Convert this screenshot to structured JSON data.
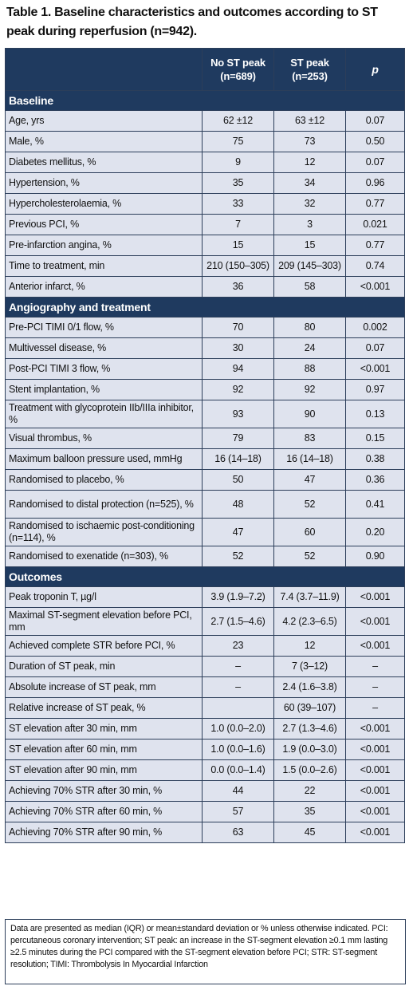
{
  "title": "Table 1. Baseline characteristics and outcomes according to ST peak during reperfusion (n=942).",
  "table": {
    "columns": {
      "label": "",
      "no_st_peak": "No ST peak (n=689)",
      "st_peak": "ST peak (n=253)",
      "p": "p"
    },
    "sections": [
      {
        "heading": "Baseline",
        "rows": [
          {
            "label": "Age, yrs",
            "no": "62 ±12",
            "yes": "63 ±12",
            "p": "0.07"
          },
          {
            "label": "Male, %",
            "no": "75",
            "yes": "73",
            "p": "0.50"
          },
          {
            "label": "Diabetes mellitus, %",
            "no": "9",
            "yes": "12",
            "p": "0.07"
          },
          {
            "label": "Hypertension, %",
            "no": "35",
            "yes": "34",
            "p": "0.96"
          },
          {
            "label": "Hypercholesterolaemia, %",
            "no": "33",
            "yes": "32",
            "p": "0.77"
          },
          {
            "label": "Previous PCI, %",
            "no": "7",
            "yes": "3",
            "p": "0.021"
          },
          {
            "label": "Pre-infarction angina, %",
            "no": "15",
            "yes": "15",
            "p": "0.77"
          },
          {
            "label": "Time to treatment, min",
            "no": "210 (150–305)",
            "yes": "209 (145–303)",
            "p": "0.74"
          },
          {
            "label": "Anterior infarct, %",
            "no": "36",
            "yes": "58",
            "p": "<0.001"
          }
        ]
      },
      {
        "heading": "Angiography and treatment",
        "rows": [
          {
            "label": "Pre-PCI TIMI 0/1 flow, %",
            "no": "70",
            "yes": "80",
            "p": "0.002"
          },
          {
            "label": "Multivessel disease, %",
            "no": "30",
            "yes": "24",
            "p": "0.07"
          },
          {
            "label": "Post-PCI TIMI 3 flow, %",
            "no": "94",
            "yes": "88",
            "p": "<0.001"
          },
          {
            "label": "Stent implantation, %",
            "no": "92",
            "yes": "92",
            "p": "0.97"
          },
          {
            "label": "Treatment with glycoprotein IIb/IIIa inhibitor, %",
            "no": "93",
            "yes": "90",
            "p": "0.13",
            "tall": true
          },
          {
            "label": "Visual thrombus, %",
            "no": "79",
            "yes": "83",
            "p": "0.15"
          },
          {
            "label": "Maximum balloon pressure used, mmHg",
            "no": "16 (14–18)",
            "yes": "16 (14–18)",
            "p": "0.38"
          },
          {
            "label": "Randomised to placebo, %",
            "no": "50",
            "yes": "47",
            "p": "0.36"
          },
          {
            "label": "Randomised to distal protection (n=525), %",
            "no": "48",
            "yes": "52",
            "p": "0.41",
            "tall": true
          },
          {
            "label": "Randomised to ischaemic post-conditioning (n=114), %",
            "no": "47",
            "yes": "60",
            "p": "0.20",
            "tall": true
          },
          {
            "label": "Randomised to exenatide (n=303), %",
            "no": "52",
            "yes": "52",
            "p": "0.90"
          }
        ]
      },
      {
        "heading": "Outcomes",
        "rows": [
          {
            "label": "Peak troponin T, µg/l",
            "no": "3.9 (1.9–7.2)",
            "yes": "7.4 (3.7–11.9)",
            "p": "<0.001"
          },
          {
            "label": "Maximal ST-segment elevation before PCI, mm",
            "no": "2.7 (1.5–4.6)",
            "yes": "4.2 (2.3–6.5)",
            "p": "<0.001",
            "tall": true
          },
          {
            "label": "Achieved complete STR before PCI, %",
            "no": "23",
            "yes": "12",
            "p": "<0.001"
          },
          {
            "label": "Duration of ST peak, min",
            "no": "–",
            "yes": "7 (3–12)",
            "p": "–"
          },
          {
            "label": "Absolute increase of ST peak, mm",
            "no": "–",
            "yes": "2.4 (1.6–3.8)",
            "p": "–"
          },
          {
            "label": "Relative increase of ST peak, %",
            "no": "",
            "yes": "60 (39–107)",
            "p": "–"
          },
          {
            "label": "ST elevation after 30 min, mm",
            "no": "1.0 (0.0–2.0)",
            "yes": "2.7 (1.3–4.6)",
            "p": "<0.001"
          },
          {
            "label": "ST elevation after 60 min, mm",
            "no": "1.0 (0.0–1.6)",
            "yes": "1.9 (0.0–3.0)",
            "p": "<0.001"
          },
          {
            "label": "ST elevation after 90 min, mm",
            "no": "0.0 (0.0–1.4)",
            "yes": "1.5 (0.0–2.6)",
            "p": "<0.001"
          },
          {
            "label": "Achieving 70% STR after 30 min, %",
            "no": "44",
            "yes": "22",
            "p": "<0.001"
          },
          {
            "label": "Achieving 70% STR after 60 min, %",
            "no": "57",
            "yes": "35",
            "p": "<0.001"
          },
          {
            "label": "Achieving 70% STR after 90 min, %",
            "no": "63",
            "yes": "45",
            "p": "<0.001"
          }
        ]
      }
    ]
  },
  "footnote": "Data are presented as median (IQR) or mean±standard deviation or % unless otherwise indicated. PCI: percutaneous coronary intervention; ST peak: an increase in the ST-segment elevation ≥0.1 mm lasting ≥2.5 minutes during the PCI compared with the ST-segment elevation before PCI; STR: ST-segment resolution; TIMI: Thrombolysis In Myocardial Infarction",
  "colors": {
    "header_bg": "#1f3a5f",
    "row_bg": "#dfe3ee",
    "border": "#2c3e5a"
  }
}
